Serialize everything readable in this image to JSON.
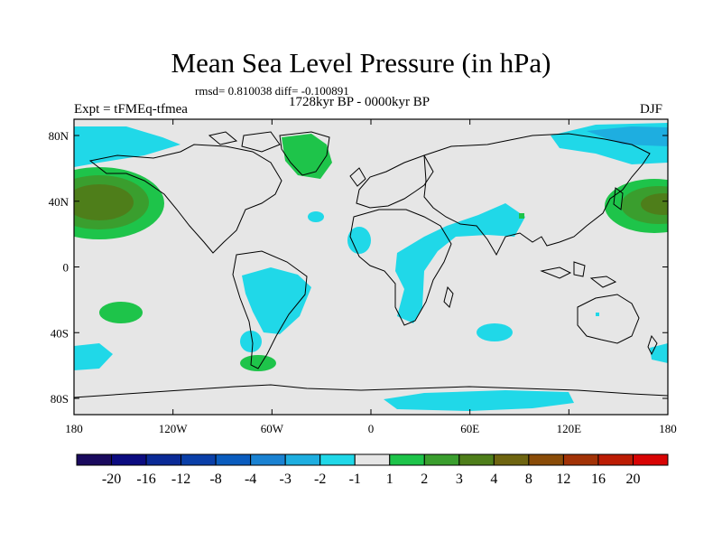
{
  "title": "Mean Sea Level Pressure (in hPa)",
  "stats": "rmsd= 0.810038 diff= -0.100891",
  "period": "1728kyr BP - 0000kyr BP",
  "experiment": "Expt = tFMEq-tfmea",
  "season": "DJF",
  "map": {
    "x_ticks": [
      "180",
      "120W",
      "60W",
      "0",
      "60E",
      "120E",
      "180"
    ],
    "y_ticks": [
      "80N",
      "40N",
      "0",
      "40S",
      "80S"
    ]
  },
  "colorbar": {
    "levels": [
      "-20",
      "-16",
      "-12",
      "-8",
      "-4",
      "-3",
      "-2",
      "-1",
      "1",
      "2",
      "3",
      "4",
      "8",
      "12",
      "16",
      "20"
    ],
    "colors": [
      "#1a0a5e",
      "#0c0c80",
      "#0a2a96",
      "#0a3fa8",
      "#0a5cbe",
      "#1a82d2",
      "#1eaee0",
      "#20d8e8",
      "#e6e6e6",
      "#1ec44a",
      "#3a9e2e",
      "#4e7e1a",
      "#6e6410",
      "#8a4c08",
      "#a23206",
      "#bc1c04",
      "#d80404"
    ]
  }
}
